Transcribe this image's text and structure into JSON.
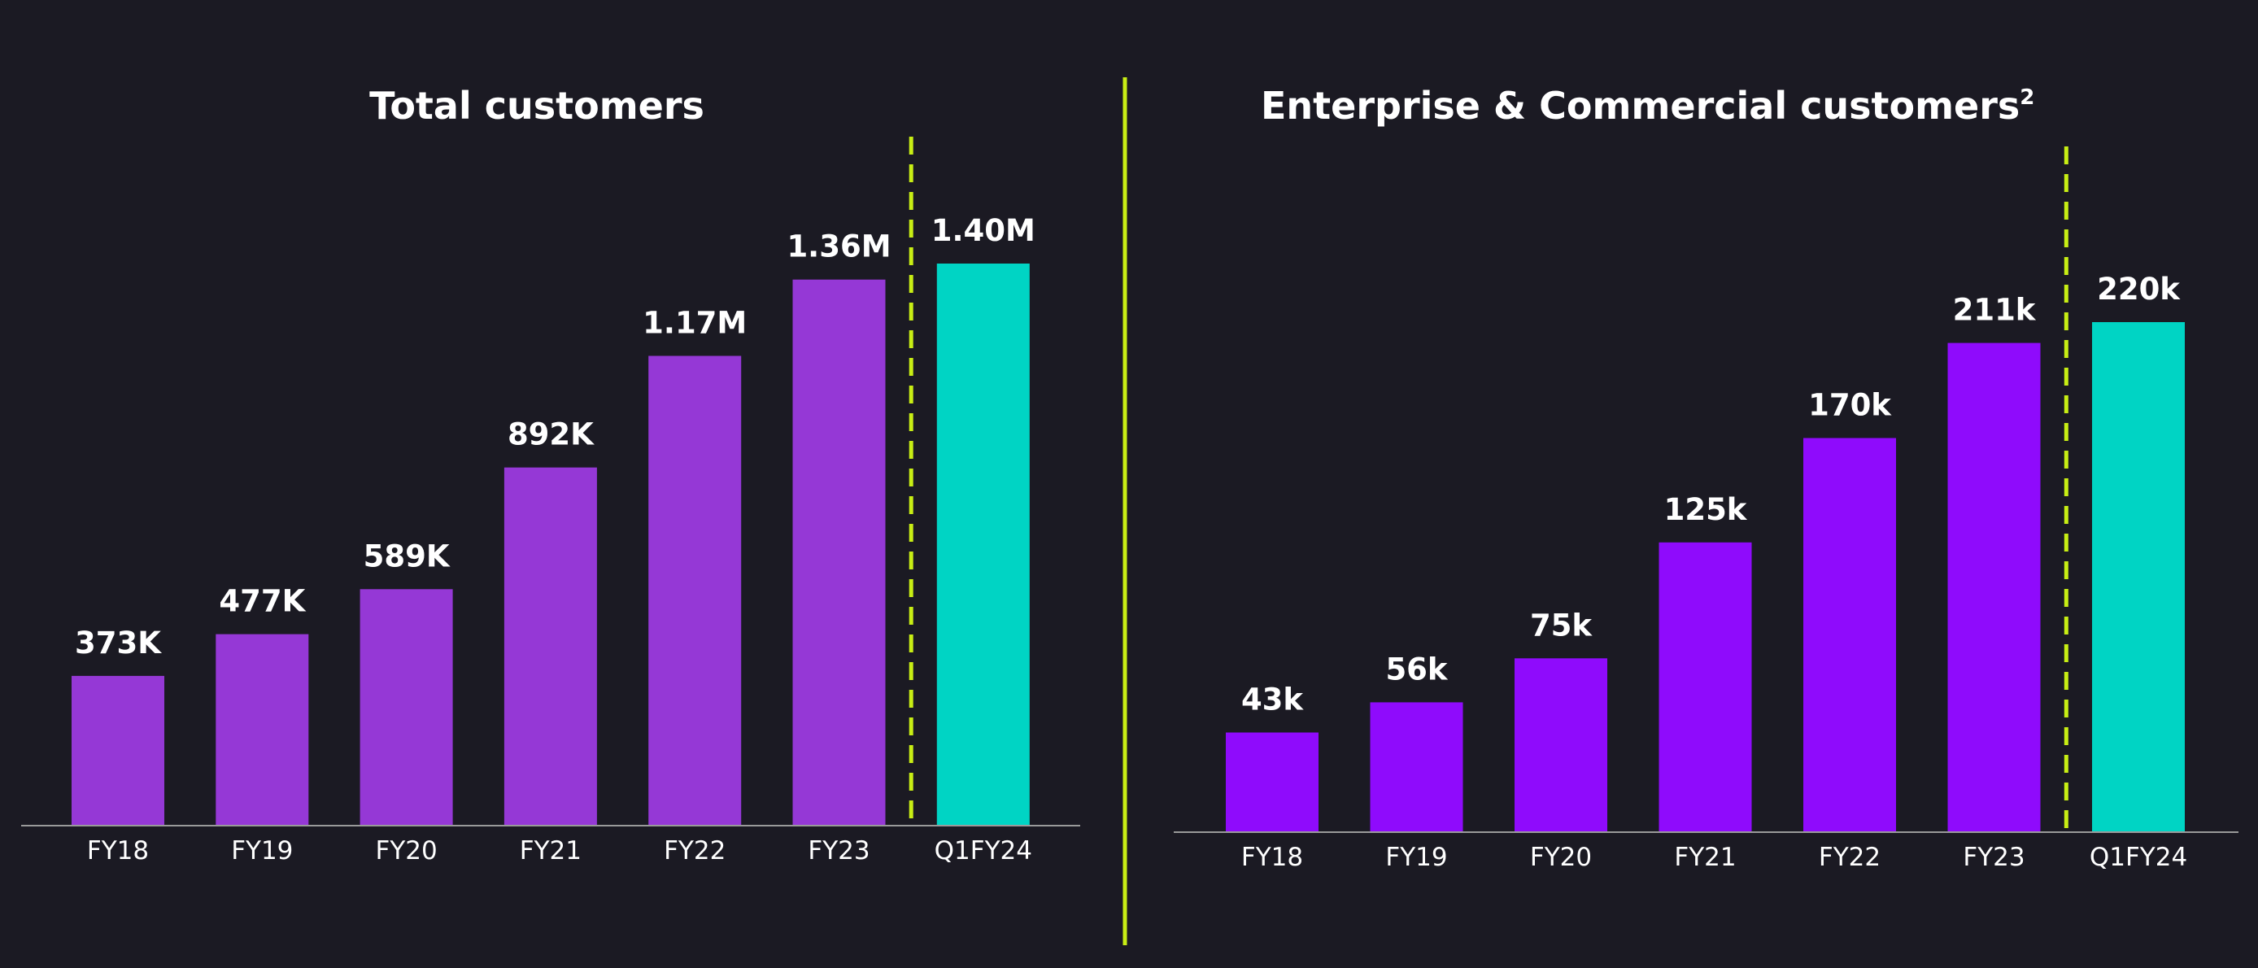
{
  "colors": {
    "background": "#1b1a23",
    "divider": "#c8ee14",
    "axis": "#9a9a9a",
    "text": "#ffffff"
  },
  "chart_data": [
    {
      "type": "bar",
      "title": "Total customers",
      "categories": [
        "FY18",
        "FY19",
        "FY20",
        "FY21",
        "FY22",
        "FY23",
        "Q1FY24"
      ],
      "values": [
        373,
        477,
        589,
        892,
        1170,
        1360,
        1400
      ],
      "value_labels": [
        "373K",
        "477K",
        "589K",
        "892K",
        "1.17M",
        "1.36M",
        "1.40M"
      ],
      "unit": "thousand customers",
      "bar_colors": [
        "#9538d6",
        "#9538d6",
        "#9538d6",
        "#9538d6",
        "#9538d6",
        "#9538d6",
        "#00d4c4"
      ],
      "separator_after_category": "FY23",
      "ylim": [
        0,
        1400
      ]
    },
    {
      "type": "bar",
      "title": "Enterprise & Commercial customers",
      "title_superscript": "2",
      "categories": [
        "FY18",
        "FY19",
        "FY20",
        "FY21",
        "FY22",
        "FY23",
        "Q1FY24"
      ],
      "values": [
        43,
        56,
        75,
        125,
        170,
        211,
        220
      ],
      "value_labels": [
        "43k",
        "56k",
        "75k",
        "125k",
        "170k",
        "211k",
        "220k"
      ],
      "unit": "thousand customers",
      "bar_colors": [
        "#8f0bfc",
        "#8f0bfc",
        "#8f0bfc",
        "#8f0bfc",
        "#8f0bfc",
        "#8f0bfc",
        "#00d4c4"
      ],
      "separator_after_category": "FY23",
      "ylim": [
        0,
        220
      ]
    }
  ]
}
